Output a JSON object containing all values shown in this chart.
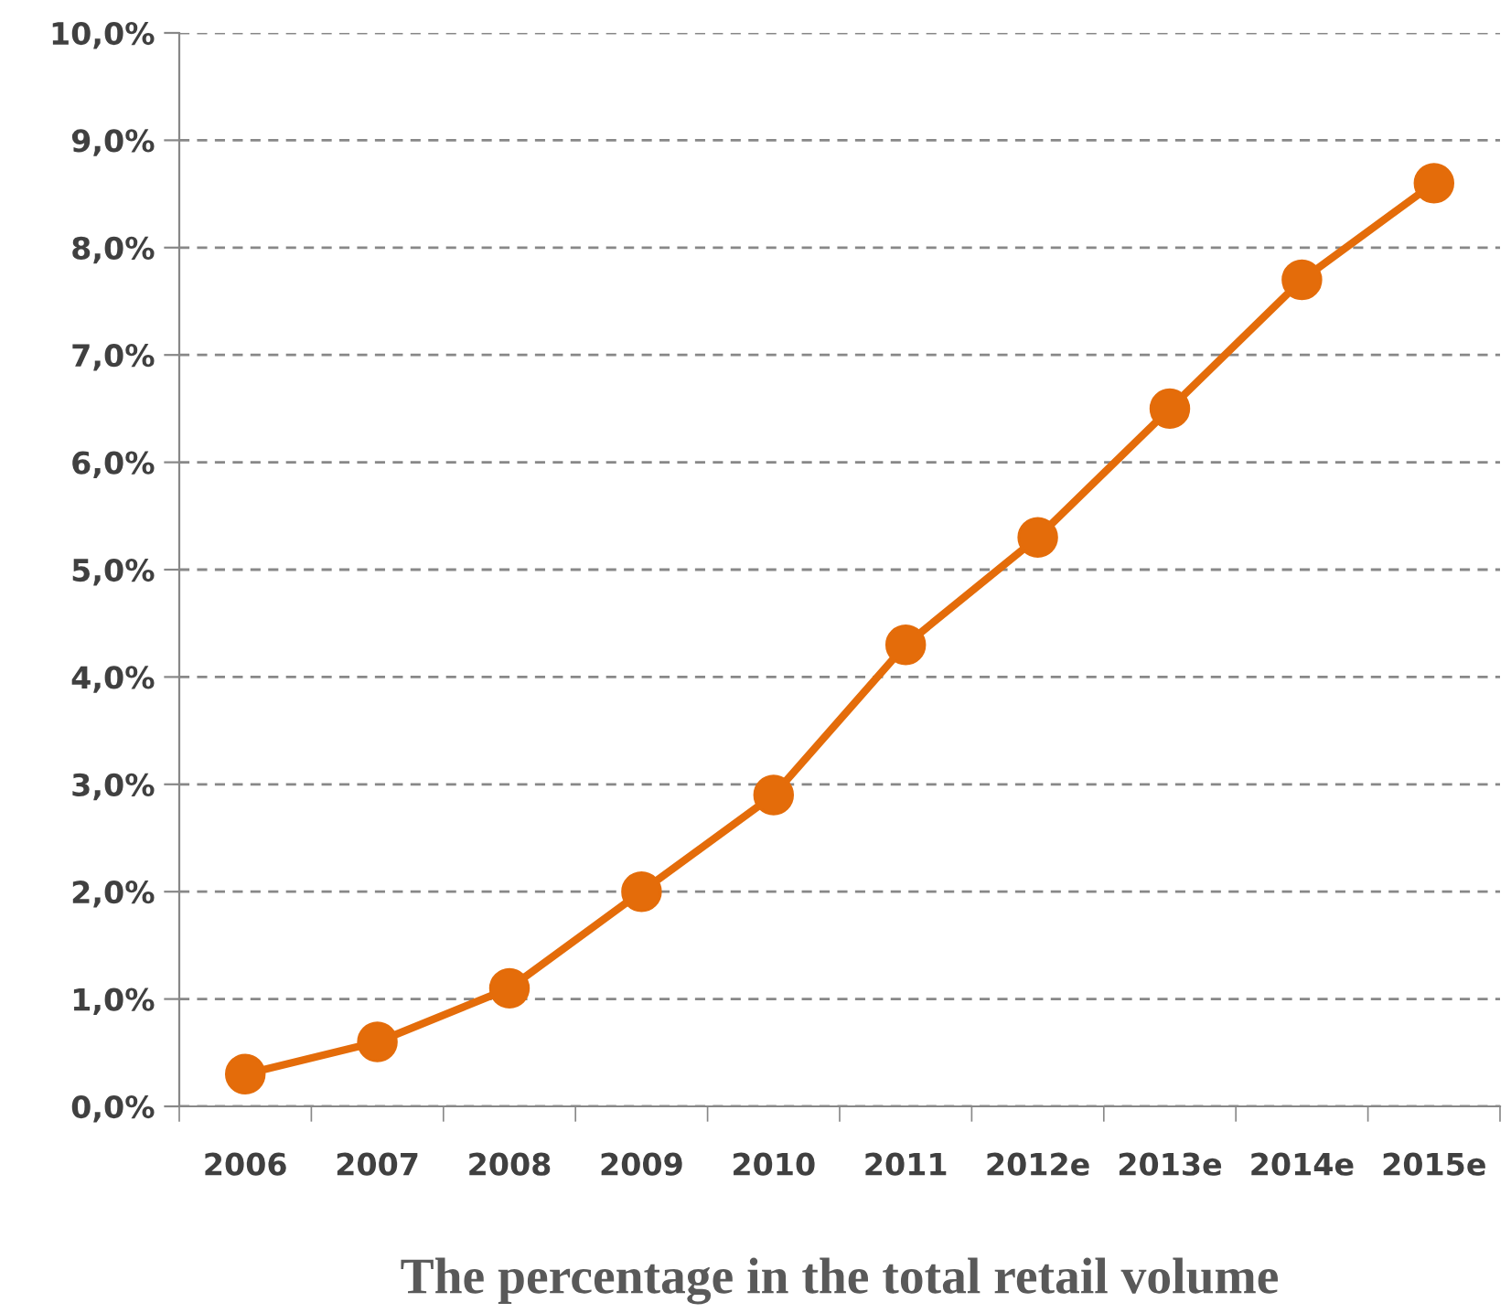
{
  "chart_data": {
    "type": "line",
    "xlabel": "The percentage in the total retail volume",
    "categories": [
      "2006",
      "2007",
      "2008",
      "2009",
      "2010",
      "2011",
      "2012e",
      "2013e",
      "2014e",
      "2015e"
    ],
    "series": [
      {
        "color": "#e46c0a",
        "values": [
          0.3,
          0.6,
          1.1,
          2.0,
          2.9,
          4.3,
          5.3,
          6.5,
          7.7,
          8.6
        ]
      }
    ],
    "ylim": [
      0,
      10
    ],
    "yticks": [
      {
        "value": 0,
        "label": "0,0%"
      },
      {
        "value": 1,
        "label": "1,0%"
      },
      {
        "value": 2,
        "label": "2,0%"
      },
      {
        "value": 3,
        "label": "3,0%"
      },
      {
        "value": 4,
        "label": "4,0%"
      },
      {
        "value": 5,
        "label": "5,0%"
      },
      {
        "value": 6,
        "label": "6,0%"
      },
      {
        "value": 7,
        "label": "7,0%"
      },
      {
        "value": 8,
        "label": "8,0%"
      },
      {
        "value": 9,
        "label": "9,0%"
      },
      {
        "value": 10,
        "label": "10,0%"
      }
    ],
    "grid": "y",
    "marker": "circle",
    "line_style": "solid",
    "legend": false
  }
}
